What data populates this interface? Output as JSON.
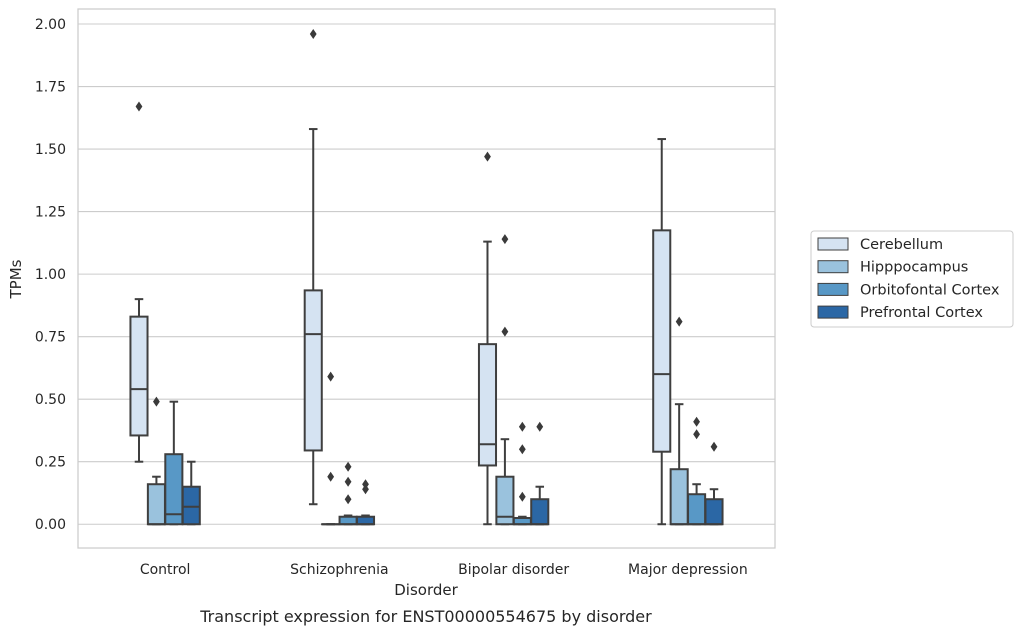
{
  "caption": "Transcript expression for ENST00000554675 by disorder",
  "chart_data": {
    "type": "box",
    "title": "",
    "xlabel": "Disorder",
    "ylabel": "TPMs",
    "ylim": [
      -0.095,
      2.06
    ],
    "yticks": [
      0.0,
      0.25,
      0.5,
      0.75,
      1.0,
      1.25,
      1.5,
      1.75,
      2.0
    ],
    "ytick_labels": [
      "0.00",
      "0.25",
      "0.50",
      "0.75",
      "1.00",
      "1.25",
      "1.50",
      "1.75",
      "2.00"
    ],
    "grid": "y",
    "legend_position": "right",
    "categories": [
      "Control",
      "Schizophrenia",
      "Bipolar disorder",
      "Major depression"
    ],
    "series": [
      {
        "name": "Cerebellum",
        "color": "#d5e3f2",
        "boxes": [
          {
            "whisker_low": 0.25,
            "q1": 0.355,
            "median": 0.54,
            "q3": 0.83,
            "whisker_high": 0.9,
            "outliers": [
              1.67
            ]
          },
          {
            "whisker_low": 0.08,
            "q1": 0.295,
            "median": 0.76,
            "q3": 0.935,
            "whisker_high": 1.58,
            "outliers": [
              1.96
            ]
          },
          {
            "whisker_low": 0.0,
            "q1": 0.235,
            "median": 0.32,
            "q3": 0.72,
            "whisker_high": 1.13,
            "outliers": [
              1.47
            ]
          },
          {
            "whisker_low": 0.0,
            "q1": 0.29,
            "median": 0.6,
            "q3": 1.175,
            "whisker_high": 1.54,
            "outliers": []
          }
        ]
      },
      {
        "name": "Hipppocampus",
        "color": "#9ac2dd",
        "boxes": [
          {
            "whisker_low": 0.0,
            "q1": 0.0,
            "median": 0.0,
            "q3": 0.16,
            "whisker_high": 0.19,
            "outliers": [
              0.49
            ]
          },
          {
            "whisker_low": 0.0,
            "q1": 0.0,
            "median": 0.0,
            "q3": 0.0,
            "whisker_high": 0.0,
            "outliers": [
              0.59,
              0.19
            ]
          },
          {
            "whisker_low": 0.0,
            "q1": 0.0,
            "median": 0.03,
            "q3": 0.19,
            "whisker_high": 0.34,
            "outliers": [
              1.14,
              0.77
            ]
          },
          {
            "whisker_low": 0.0,
            "q1": 0.0,
            "median": 0.0,
            "q3": 0.22,
            "whisker_high": 0.48,
            "outliers": [
              0.81
            ]
          }
        ]
      },
      {
        "name": "Orbitofontal Cortex",
        "color": "#5898c6",
        "boxes": [
          {
            "whisker_low": 0.0,
            "q1": 0.0,
            "median": 0.04,
            "q3": 0.28,
            "whisker_high": 0.49,
            "outliers": []
          },
          {
            "whisker_low": 0.0,
            "q1": 0.0,
            "median": 0.0,
            "q3": 0.03,
            "whisker_high": 0.035,
            "outliers": [
              0.23,
              0.17,
              0.1
            ]
          },
          {
            "whisker_low": 0.0,
            "q1": 0.0,
            "median": 0.0,
            "q3": 0.025,
            "whisker_high": 0.03,
            "outliers": [
              0.39,
              0.3,
              0.11
            ]
          },
          {
            "whisker_low": 0.0,
            "q1": 0.0,
            "median": 0.0,
            "q3": 0.12,
            "whisker_high": 0.16,
            "outliers": [
              0.41,
              0.36
            ]
          }
        ]
      },
      {
        "name": "Prefrontal Cortex",
        "color": "#2b67a5",
        "boxes": [
          {
            "whisker_low": 0.0,
            "q1": 0.0,
            "median": 0.07,
            "q3": 0.15,
            "whisker_high": 0.25,
            "outliers": []
          },
          {
            "whisker_low": 0.0,
            "q1": 0.0,
            "median": 0.0,
            "q3": 0.03,
            "whisker_high": 0.035,
            "outliers": [
              0.16,
              0.14
            ]
          },
          {
            "whisker_low": 0.0,
            "q1": 0.0,
            "median": 0.0,
            "q3": 0.1,
            "whisker_high": 0.15,
            "outliers": [
              0.39
            ]
          },
          {
            "whisker_low": 0.0,
            "q1": 0.0,
            "median": 0.0,
            "q3": 0.1,
            "whisker_high": 0.14,
            "outliers": [
              0.31
            ]
          }
        ]
      }
    ]
  }
}
